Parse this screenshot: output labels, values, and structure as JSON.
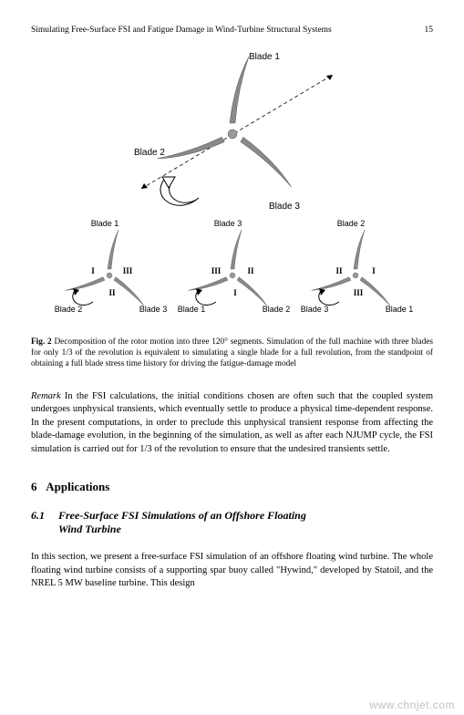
{
  "header": {
    "running_title": "Simulating Free-Surface FSI and Fatigue Damage in Wind-Turbine Structural Systems",
    "page_number": "15"
  },
  "figure": {
    "top": {
      "blade1_label": "Blade 1",
      "blade2_label": "Blade 2",
      "blade3_label": "Blade 3",
      "blade_color": "#8a8a8a",
      "dash_color": "#000000",
      "arrow_stroke": "#000000",
      "arrow_fill": "#ffffff"
    },
    "bottom": {
      "turbines": [
        {
          "b1": "Blade 1",
          "b2": "Blade 2",
          "b3": "Blade 3",
          "r1": "I",
          "r2": "II",
          "r3": "III"
        },
        {
          "b1": "Blade 3",
          "b2": "Blade 1",
          "b3": "Blade 2",
          "r1": "III",
          "r2": "I",
          "r3": "II"
        },
        {
          "b1": "Blade 2",
          "b2": "Blade 3",
          "b3": "Blade 1",
          "r1": "II",
          "r2": "III",
          "r3": "I"
        }
      ],
      "blade_color": "#8a8a8a",
      "arrow_stroke": "#000000"
    }
  },
  "caption": {
    "label": "Fig. 2",
    "text": "Decomposition of the rotor motion into three 120° segments. Simulation of the full machine with three blades for only 1/3 of the revolution is equivalent to simulating a single blade for a full revolution, from the standpoint of obtaining a full blade stress time history for driving the fatigue-damage model"
  },
  "remark": {
    "label": "Remark",
    "text": "In the FSI calculations, the initial conditions chosen are often such that the coupled system undergoes unphysical transients, which eventually settle to produce a physical time-dependent response. In the present computations, in order to preclude this unphysical transient response from affecting the blade-damage evolution, in the beginning of the simulation, as well as after each NJUMP cycle, the FSI simulation is carried out for 1/3 of the revolution to ensure that the undesired transients settle."
  },
  "section": {
    "number": "6",
    "title": "Applications"
  },
  "subsection": {
    "number": "6.1",
    "title_line1": "Free-Surface FSI Simulations of an Offshore Floating",
    "title_line2": "Wind Turbine"
  },
  "body": {
    "p1": "In this section, we present a free-surface FSI simulation of an offshore floating wind turbine. The whole floating wind turbine consists of a supporting spar buoy called \"Hywind,\" developed by Statoil, and the NREL 5 MW baseline turbine. This design"
  },
  "watermark": "www.chnjet.com"
}
